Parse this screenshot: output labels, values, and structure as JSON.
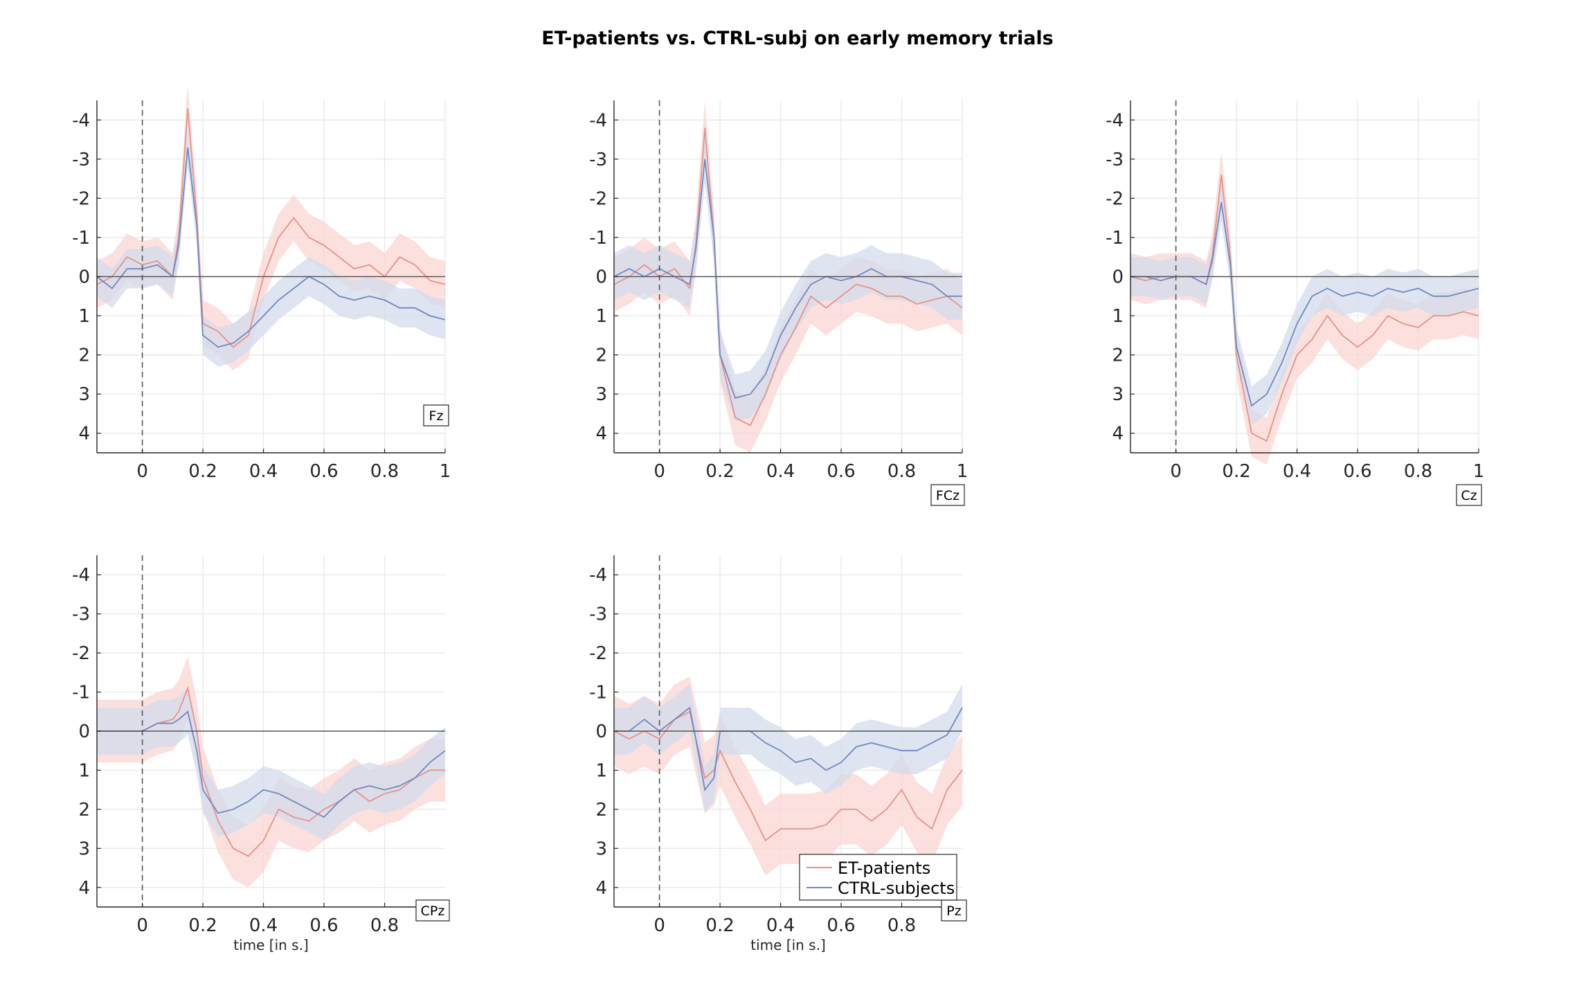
{
  "figure": {
    "title": "ET-patients vs. CTRL-subj on early memory trials"
  },
  "colors": {
    "et": "#e8908a",
    "et_band": "#fbd6d2",
    "ctrl": "#7088c0",
    "ctrl_band": "#d3dcec",
    "grid": "#e6e6e6",
    "axis": "#262626",
    "zero_line": "#555555"
  },
  "legend": {
    "entries": [
      "ET-patients",
      "CTRL-subjects"
    ],
    "placement": "lower-right of Pz panel"
  },
  "chart_data": [
    {
      "type": "line",
      "channel": "Fz",
      "xlabel": "",
      "xlim": [
        -0.15,
        1.0
      ],
      "ylim": [
        -4.5,
        4.5
      ],
      "y_reversed": true,
      "grid": true,
      "xticks": [
        "0",
        "0.2",
        "0.4",
        "0.6",
        "0.8",
        "1"
      ],
      "yticks": [
        "-4",
        "-3",
        "-2",
        "-1",
        "0",
        "1",
        "2",
        "3",
        "4"
      ],
      "x": [
        -0.15,
        -0.1,
        -0.05,
        0,
        0.05,
        0.1,
        0.12,
        0.15,
        0.18,
        0.2,
        0.25,
        0.3,
        0.35,
        0.4,
        0.45,
        0.5,
        0.55,
        0.6,
        0.65,
        0.7,
        0.75,
        0.8,
        0.85,
        0.9,
        0.95,
        1.0
      ],
      "series": [
        {
          "name": "ET-patients",
          "values": [
            0.2,
            0,
            -0.5,
            -0.3,
            -0.4,
            0,
            -1,
            -4.3,
            -1.5,
            1.2,
            1.4,
            1.8,
            1.5,
            0,
            -1,
            -1.5,
            -1,
            -0.8,
            -0.5,
            -0.2,
            -0.3,
            0,
            -0.5,
            -0.3,
            0.1,
            0.2
          ],
          "band": 0.6
        },
        {
          "name": "CTRL-subjects",
          "values": [
            0,
            0.3,
            -0.2,
            -0.2,
            -0.3,
            0,
            -0.8,
            -3.3,
            -1.3,
            1.5,
            1.8,
            1.7,
            1.4,
            1,
            0.6,
            0.3,
            0,
            0.2,
            0.5,
            0.6,
            0.5,
            0.6,
            0.8,
            0.8,
            1,
            1.1
          ],
          "band": 0.5
        }
      ]
    },
    {
      "type": "line",
      "channel": "FCz",
      "xlabel": "",
      "xlim": [
        -0.15,
        1.0
      ],
      "ylim": [
        -4.5,
        4.5
      ],
      "y_reversed": true,
      "grid": true,
      "xticks": [
        "0",
        "0.2",
        "0.4",
        "0.6",
        "0.8",
        "1"
      ],
      "yticks": [
        "-4",
        "-3",
        "-2",
        "-1",
        "0",
        "1",
        "2",
        "3",
        "4"
      ],
      "x": [
        -0.15,
        -0.1,
        -0.05,
        0,
        0.05,
        0.1,
        0.12,
        0.15,
        0.18,
        0.2,
        0.25,
        0.3,
        0.35,
        0.4,
        0.45,
        0.5,
        0.55,
        0.6,
        0.65,
        0.7,
        0.75,
        0.8,
        0.85,
        0.9,
        0.95,
        1.0
      ],
      "series": [
        {
          "name": "ET-patients",
          "values": [
            0.2,
            0,
            -0.3,
            0,
            -0.2,
            0.3,
            -0.8,
            -3.8,
            -1,
            2,
            3.6,
            3.8,
            3,
            2,
            1.3,
            0.5,
            0.8,
            0.5,
            0.2,
            0.3,
            0.5,
            0.5,
            0.7,
            0.6,
            0.5,
            0.8
          ],
          "band": 0.7
        },
        {
          "name": "CTRL-subjects",
          "values": [
            0,
            -0.2,
            0,
            -0.2,
            0,
            0.2,
            -0.7,
            -3,
            -1,
            2,
            3.1,
            3,
            2.5,
            1.5,
            0.8,
            0.2,
            0,
            0.1,
            0,
            -0.2,
            0,
            0,
            0.1,
            0.2,
            0.5,
            0.5
          ],
          "band": 0.6
        }
      ]
    },
    {
      "type": "line",
      "channel": "Cz",
      "xlabel": "",
      "xlim": [
        -0.15,
        1.0
      ],
      "ylim": [
        -4.5,
        4.5
      ],
      "y_reversed": true,
      "grid": true,
      "xticks": [
        "0",
        "0.2",
        "0.4",
        "0.6",
        "0.8",
        "1"
      ],
      "yticks": [
        "-4",
        "-3",
        "-2",
        "-1",
        "0",
        "1",
        "2",
        "3",
        "4"
      ],
      "x": [
        -0.15,
        -0.1,
        -0.05,
        0,
        0.05,
        0.1,
        0.12,
        0.15,
        0.18,
        0.2,
        0.25,
        0.3,
        0.35,
        0.4,
        0.45,
        0.5,
        0.55,
        0.6,
        0.65,
        0.7,
        0.75,
        0.8,
        0.85,
        0.9,
        0.95,
        1.0
      ],
      "series": [
        {
          "name": "ET-patients",
          "values": [
            0,
            0.1,
            0,
            0,
            0,
            0.2,
            -0.5,
            -2.6,
            -0.5,
            2,
            4,
            4.2,
            3,
            2,
            1.6,
            1,
            1.5,
            1.8,
            1.5,
            1,
            1.2,
            1.3,
            1,
            1,
            0.9,
            1
          ],
          "band": 0.6
        },
        {
          "name": "CTRL-subjects",
          "values": [
            0,
            0,
            0.1,
            0,
            0,
            0.2,
            -0.4,
            -1.9,
            -0.3,
            1.8,
            3.3,
            3,
            2.2,
            1.2,
            0.5,
            0.3,
            0.5,
            0.4,
            0.5,
            0.3,
            0.4,
            0.3,
            0.5,
            0.5,
            0.4,
            0.3
          ],
          "band": 0.5
        }
      ]
    },
    {
      "type": "line",
      "channel": "CPz",
      "xlabel": "time [in s.]",
      "xlim": [
        -0.15,
        1.0
      ],
      "ylim": [
        -4.5,
        4.5
      ],
      "y_reversed": true,
      "grid": true,
      "xticks": [
        "0",
        "0.2",
        "0.4",
        "0.6",
        "0.8"
      ],
      "yticks": [
        "-4",
        "-3",
        "-2",
        "-1",
        "0",
        "1",
        "2",
        "3",
        "4"
      ],
      "x": [
        -0.15,
        -0.1,
        -0.05,
        0,
        0.05,
        0.1,
        0.12,
        0.15,
        0.18,
        0.2,
        0.25,
        0.3,
        0.35,
        0.4,
        0.45,
        0.5,
        0.55,
        0.6,
        0.65,
        0.7,
        0.75,
        0.8,
        0.85,
        0.9,
        0.95,
        1.0
      ],
      "series": [
        {
          "name": "ET-patients",
          "values": [
            0,
            0,
            0,
            0,
            -0.2,
            -0.3,
            -0.5,
            -1.1,
            0,
            1.2,
            2.3,
            3,
            3.2,
            2.8,
            2,
            2.2,
            2.3,
            2,
            1.8,
            1.5,
            1.8,
            1.6,
            1.5,
            1.2,
            1,
            1
          ],
          "band": 0.8
        },
        {
          "name": "CTRL-subjects",
          "values": [
            0,
            0,
            0,
            0,
            -0.2,
            -0.2,
            -0.3,
            -0.5,
            0.5,
            1.5,
            2.1,
            2,
            1.8,
            1.5,
            1.6,
            1.8,
            2,
            2.2,
            1.8,
            1.5,
            1.4,
            1.5,
            1.4,
            1.2,
            0.8,
            0.5
          ],
          "band": 0.6
        }
      ]
    },
    {
      "type": "line",
      "channel": "Pz",
      "xlabel": "time [in s.]",
      "xlim": [
        -0.15,
        1.0
      ],
      "ylim": [
        -4.5,
        4.5
      ],
      "y_reversed": true,
      "grid": true,
      "xticks": [
        "0",
        "0.2",
        "0.4",
        "0.6",
        "0.8"
      ],
      "yticks": [
        "-4",
        "-3",
        "-2",
        "-1",
        "0",
        "1",
        "2",
        "3",
        "4"
      ],
      "x": [
        -0.15,
        -0.1,
        -0.05,
        0,
        0.05,
        0.1,
        0.12,
        0.15,
        0.18,
        0.2,
        0.25,
        0.3,
        0.35,
        0.4,
        0.45,
        0.5,
        0.55,
        0.6,
        0.65,
        0.7,
        0.75,
        0.8,
        0.85,
        0.9,
        0.95,
        1.0
      ],
      "series": [
        {
          "name": "ET-patients",
          "values": [
            0,
            0.2,
            0,
            0.2,
            -0.3,
            -0.5,
            0.2,
            1.2,
            1,
            0.5,
            1.3,
            2,
            2.8,
            2.5,
            2.5,
            2.5,
            2.4,
            2,
            2,
            2.3,
            2,
            1.5,
            2.2,
            2.5,
            1.5,
            1
          ],
          "band": 0.9
        },
        {
          "name": "CTRL-subjects",
          "values": [
            0,
            0,
            -0.3,
            0,
            -0.3,
            -0.6,
            0.2,
            1.5,
            1.2,
            0,
            0,
            0,
            0.3,
            0.5,
            0.8,
            0.7,
            1,
            0.8,
            0.4,
            0.3,
            0.4,
            0.5,
            0.5,
            0.3,
            0.1,
            -0.6
          ],
          "band": 0.6
        }
      ]
    }
  ]
}
